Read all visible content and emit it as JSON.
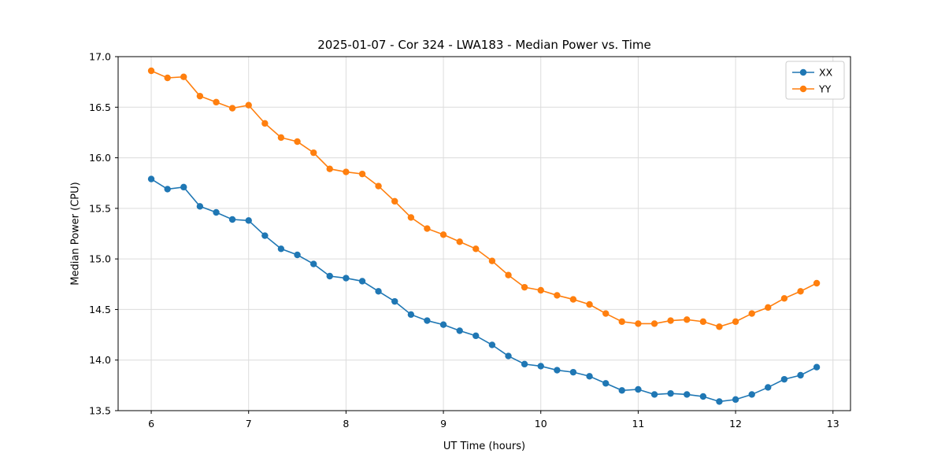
{
  "chart_data": {
    "type": "line",
    "title": "2025-01-07 - Cor 324 - LWA183 - Median Power vs. Time",
    "xlabel": "UT Time (hours)",
    "ylabel": "Median Power (CPU)",
    "xlim": [
      5.66,
      13.18
    ],
    "ylim": [
      13.5,
      17.0
    ],
    "xticks": [
      6,
      7,
      8,
      9,
      10,
      11,
      12,
      13
    ],
    "yticks": [
      13.5,
      14.0,
      14.5,
      15.0,
      15.5,
      16.0,
      16.5,
      17.0
    ],
    "grid": true,
    "grid_color": "#dcdcdc",
    "frame_color": "#000000",
    "legend_position": "upper right",
    "x": [
      6.0,
      6.167,
      6.333,
      6.5,
      6.667,
      6.833,
      7.0,
      7.167,
      7.333,
      7.5,
      7.667,
      7.833,
      8.0,
      8.167,
      8.333,
      8.5,
      8.667,
      8.833,
      9.0,
      9.167,
      9.333,
      9.5,
      9.667,
      9.833,
      10.0,
      10.167,
      10.333,
      10.5,
      10.667,
      10.833,
      11.0,
      11.167,
      11.333,
      11.5,
      11.667,
      11.833,
      12.0,
      12.167,
      12.333,
      12.5,
      12.667,
      12.833
    ],
    "series": [
      {
        "name": "XX",
        "color": "#1f77b4",
        "values": [
          15.79,
          15.69,
          15.71,
          15.52,
          15.46,
          15.39,
          15.38,
          15.23,
          15.1,
          15.04,
          14.95,
          14.83,
          14.81,
          14.78,
          14.68,
          14.58,
          14.45,
          14.39,
          14.35,
          14.29,
          14.24,
          14.15,
          14.04,
          13.96,
          13.94,
          13.9,
          13.88,
          13.84,
          13.77,
          13.7,
          13.71,
          13.66,
          13.67,
          13.66,
          13.64,
          13.59,
          13.61,
          13.66,
          13.73,
          13.81,
          13.85,
          13.93
        ]
      },
      {
        "name": "YY",
        "color": "#ff7f0e",
        "values": [
          16.86,
          16.79,
          16.8,
          16.61,
          16.55,
          16.49,
          16.52,
          16.34,
          16.2,
          16.16,
          16.05,
          15.89,
          15.86,
          15.84,
          15.72,
          15.57,
          15.41,
          15.3,
          15.24,
          15.17,
          15.1,
          14.98,
          14.84,
          14.72,
          14.69,
          14.64,
          14.6,
          14.55,
          14.46,
          14.38,
          14.36,
          14.36,
          14.39,
          14.4,
          14.38,
          14.33,
          14.38,
          14.46,
          14.52,
          14.61,
          14.68,
          14.76
        ]
      }
    ]
  }
}
